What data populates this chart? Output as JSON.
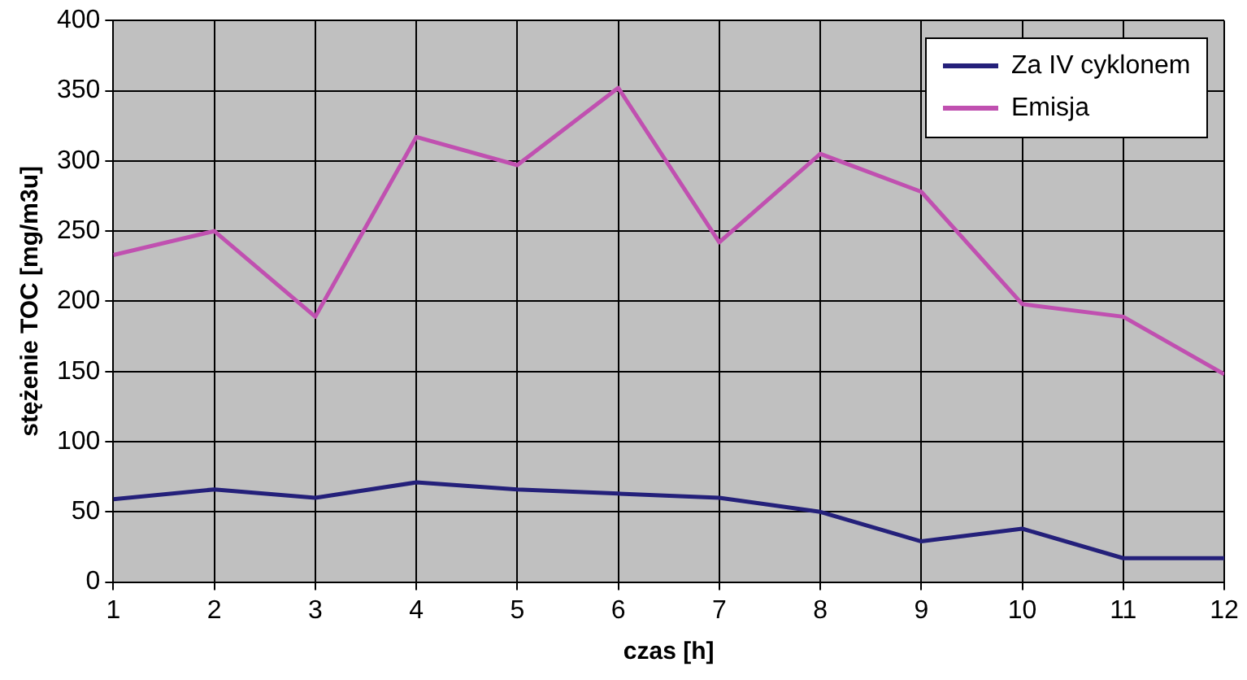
{
  "chart_data": {
    "type": "line",
    "xlabel": "czas [h]",
    "ylabel": "stężenie TOC [mg/m3u]",
    "x": [
      1,
      2,
      3,
      4,
      5,
      6,
      7,
      8,
      9,
      10,
      11,
      12
    ],
    "series": [
      {
        "name": "Za IV cyklonem",
        "color": "#24207a",
        "values": [
          59,
          66,
          60,
          71,
          66,
          63,
          60,
          50,
          29,
          38,
          17,
          17
        ]
      },
      {
        "name": "Emisja",
        "color": "#c050b0",
        "values": [
          233,
          250,
          189,
          317,
          297,
          352,
          242,
          305,
          278,
          198,
          189,
          148
        ]
      }
    ],
    "xlim": [
      1,
      12
    ],
    "xticks": [
      1,
      2,
      3,
      4,
      5,
      6,
      7,
      8,
      9,
      10,
      11,
      12
    ],
    "ylim": [
      0,
      400
    ],
    "yticks": [
      0,
      50,
      100,
      150,
      200,
      250,
      300,
      350,
      400
    ],
    "grid": true,
    "legend": "top right",
    "marker": "none",
    "line_style": "solid"
  }
}
